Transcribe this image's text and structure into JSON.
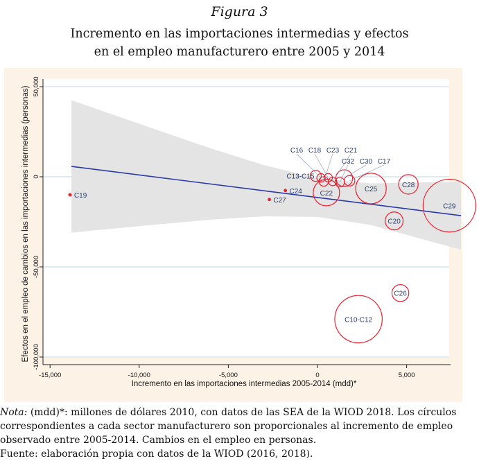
{
  "figure_number": "Figura 3",
  "title_line1": "Incremento en las importaciones intermedias y efectos",
  "title_line2": "en el empleo manufacturero entre 2005 y 2014",
  "note": {
    "label": "Nota:",
    "line1": " (mdd)*: millones de dólares 2010, con datos de las SEA de la WIOD 2018. Los círculos",
    "line2": "correspondientes a cada sector manufacturero son proporcionales al incremento de empleo",
    "line3": "observado entre 2005-2014. Cambios en el empleo en personas.",
    "line4": "Fuente: elaboración propia con datos de la WIOD (2016, 2018)."
  },
  "chart_data": {
    "type": "scatter",
    "xlabel": "Incremento en las importaciones intermedias 2005-2014 (mdd)*",
    "ylabel": "Efectos en el empleo de cambios en las importaciones intermedias (personas)",
    "xlim": [
      -15400,
      7600
    ],
    "ylim": [
      -102000,
      54000
    ],
    "xticks": [
      -15000,
      -10000,
      -5000,
      0,
      5000
    ],
    "xtick_labels": [
      "-15,000",
      "-10,000",
      "-5,000",
      "0",
      "5,000"
    ],
    "yticks": [
      50000,
      0,
      -50000,
      -100000
    ],
    "ytick_labels": [
      "50,000",
      "0",
      "-50,000",
      "-100,000"
    ],
    "grid": true,
    "colors": {
      "bubble": "#e8202f",
      "label": "#2b3d6b",
      "fit": "#2a3aa8",
      "band": "#e4e4e4",
      "grid": "#d6e6ee",
      "frame": "#fcf2e6"
    },
    "fit_line": {
      "x": [
        -13800,
        8050
      ],
      "y": [
        5750,
        -21560
      ]
    },
    "confidence_band": {
      "x": [
        -13800,
        -10000,
        -6000,
        -3000,
        0,
        3000,
        6000,
        8050
      ],
      "upper": [
        42500,
        29400,
        15800,
        6450,
        -740,
        -3720,
        -3060,
        -2700
      ],
      "lower": [
        -31000,
        -27400,
        -23800,
        -21950,
        -22260,
        -26780,
        -34940,
        -40420
      ]
    },
    "points": [
      {
        "label": "C19",
        "x": -13880,
        "y": -10000,
        "size": 0.05,
        "label_pos": "right"
      },
      {
        "label": "C13-C15",
        "x": -100,
        "y": 500,
        "size": 0.21,
        "label_pos": "left"
      },
      {
        "label": "C16",
        "x": 200,
        "y": -600,
        "size": 0.16,
        "label_pos": "center"
      },
      {
        "label": "C18",
        "x": 600,
        "y": -500,
        "size": 0.16,
        "label_pos": "center"
      },
      {
        "label": "C23",
        "x": 350,
        "y": -2600,
        "size": 0.18,
        "label_pos": "center"
      },
      {
        "label": "C21",
        "x": 850,
        "y": -2600,
        "size": 0.16,
        "label_pos": "center"
      },
      {
        "label": "C32",
        "x": 1250,
        "y": -3000,
        "size": 0.18,
        "label_pos": "center"
      },
      {
        "label": "C30",
        "x": 1500,
        "y": -800,
        "size": 0.32,
        "label_pos": "center"
      },
      {
        "label": "C17",
        "x": 1800,
        "y": -2200,
        "size": 0.2,
        "label_pos": "center"
      },
      {
        "label": "C22",
        "x": 500,
        "y": -8800,
        "size": 0.5,
        "label_pos": "center"
      },
      {
        "label": "C24",
        "x": -1800,
        "y": -7600,
        "size": 0.02,
        "label_pos": "right"
      },
      {
        "label": "C27",
        "x": -2700,
        "y": -12600,
        "size": 0.02,
        "label_pos": "right"
      },
      {
        "label": "C25",
        "x": 3000,
        "y": -6500,
        "size": 0.58,
        "label_pos": "center"
      },
      {
        "label": "C28",
        "x": 5100,
        "y": -4200,
        "size": 0.37,
        "label_pos": "center"
      },
      {
        "label": "C29",
        "x": 7400,
        "y": -16000,
        "size": 1.0,
        "label_pos": "center"
      },
      {
        "label": "C20",
        "x": 4300,
        "y": -24500,
        "size": 0.34,
        "label_pos": "center"
      },
      {
        "label": "C26",
        "x": 4650,
        "y": -64500,
        "size": 0.32,
        "label_pos": "center"
      },
      {
        "label": "C10-C12",
        "x": 2300,
        "y": -79000,
        "size": 0.9,
        "label_pos": "center"
      }
    ]
  }
}
